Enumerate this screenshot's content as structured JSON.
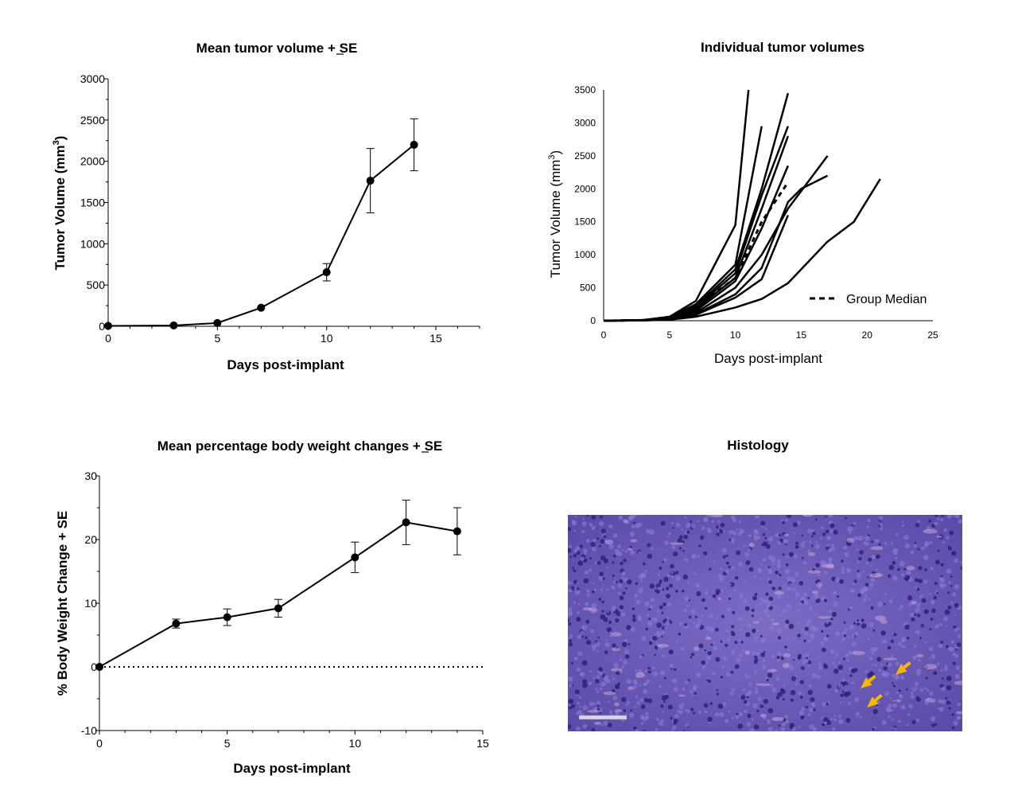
{
  "chart_data": [
    {
      "type": "line",
      "title": "Mean tumor volume + SE",
      "xlabel": "Days post-implant",
      "ylabel": "Tumor Volume (mm",
      "ylabel_sup": "3",
      "ylabel_close": ")",
      "xlim": [
        0,
        17
      ],
      "ylim": [
        0,
        3000
      ],
      "xticks": [
        0,
        5,
        10,
        15
      ],
      "yticks": [
        0,
        500,
        1000,
        1500,
        2000,
        2500,
        3000
      ],
      "points": [
        {
          "x": 0,
          "y": 5,
          "err": 0
        },
        {
          "x": 3,
          "y": 10,
          "err": 0
        },
        {
          "x": 5,
          "y": 40,
          "err": 0
        },
        {
          "x": 7,
          "y": 225,
          "err": 0
        },
        {
          "x": 10,
          "y": 655,
          "err": 105
        },
        {
          "x": 12,
          "y": 1765,
          "err": 390
        },
        {
          "x": 14,
          "y": 2200,
          "err": 315
        }
      ]
    },
    {
      "type": "line",
      "title": "Individual tumor volumes",
      "xlabel": "Days post-implant",
      "ylabel": "Tumor Volume (mm",
      "ylabel_sup": "3",
      "ylabel_close": ")",
      "xlim": [
        0,
        25
      ],
      "ylim": [
        0,
        3500
      ],
      "xticks": [
        0,
        5,
        10,
        15,
        20,
        25
      ],
      "yticks": [
        0,
        500,
        1000,
        1500,
        2000,
        2500,
        3000,
        3500
      ],
      "legend": "Group Median",
      "series": [
        {
          "points": [
            [
              0,
              0
            ],
            [
              3,
              10
            ],
            [
              5,
              60
            ],
            [
              7,
              300
            ],
            [
              10,
              1450
            ],
            [
              11,
              3500
            ]
          ]
        },
        {
          "points": [
            [
              0,
              0
            ],
            [
              3,
              10
            ],
            [
              5,
              50
            ],
            [
              7,
              250
            ],
            [
              10,
              850
            ],
            [
              12,
              2950
            ]
          ]
        },
        {
          "points": [
            [
              0,
              0
            ],
            [
              3,
              10
            ],
            [
              5,
              40
            ],
            [
              7,
              220
            ],
            [
              10,
              780
            ],
            [
              12,
              2000
            ],
            [
              14,
              3450
            ]
          ]
        },
        {
          "points": [
            [
              0,
              0
            ],
            [
              3,
              10
            ],
            [
              5,
              40
            ],
            [
              7,
              200
            ],
            [
              10,
              720
            ],
            [
              12,
              1900
            ],
            [
              14,
              2950
            ]
          ]
        },
        {
          "points": [
            [
              0,
              0
            ],
            [
              3,
              8
            ],
            [
              5,
              30
            ],
            [
              7,
              180
            ],
            [
              10,
              650
            ],
            [
              12,
              1700
            ],
            [
              14,
              2800
            ]
          ]
        },
        {
          "points": [
            [
              0,
              0
            ],
            [
              3,
              8
            ],
            [
              5,
              30
            ],
            [
              7,
              150
            ],
            [
              10,
              600
            ],
            [
              12,
              1400
            ],
            [
              14,
              2350
            ]
          ]
        },
        {
          "points": [
            [
              0,
              0
            ],
            [
              3,
              6
            ],
            [
              5,
              25
            ],
            [
              7,
              120
            ],
            [
              10,
              500
            ],
            [
              12,
              1000
            ],
            [
              14,
              1700
            ],
            [
              17,
              2500
            ]
          ]
        },
        {
          "points": [
            [
              0,
              0
            ],
            [
              3,
              5
            ],
            [
              5,
              20
            ],
            [
              7,
              100
            ],
            [
              10,
              400
            ],
            [
              12,
              800
            ],
            [
              14,
              1800
            ],
            [
              15,
              2000
            ],
            [
              17,
              2200
            ]
          ]
        },
        {
          "points": [
            [
              0,
              0
            ],
            [
              3,
              5
            ],
            [
              5,
              20
            ],
            [
              7,
              90
            ],
            [
              10,
              350
            ],
            [
              12,
              630
            ],
            [
              14,
              1600
            ]
          ]
        },
        {
          "points": [
            [
              0,
              0
            ],
            [
              3,
              4
            ],
            [
              5,
              15
            ],
            [
              7,
              60
            ],
            [
              10,
              200
            ],
            [
              12,
              330
            ],
            [
              14,
              570
            ],
            [
              17,
              1200
            ],
            [
              19,
              1500
            ],
            [
              21,
              2150
            ]
          ]
        }
      ],
      "median": [
        [
          0,
          0
        ],
        [
          3,
          8
        ],
        [
          5,
          35
        ],
        [
          7,
          200
        ],
        [
          10,
          650
        ],
        [
          12,
          1500
        ],
        [
          14,
          2100
        ]
      ]
    },
    {
      "type": "line",
      "title": "Mean percentage body weight changes + SE",
      "xlabel": "Days post-implant",
      "ylabel": "% Body  Weight Change + SE",
      "xlim": [
        0,
        15
      ],
      "ylim": [
        -10,
        30
      ],
      "xticks": [
        0,
        5,
        10,
        15
      ],
      "yticks": [
        -10,
        0,
        10,
        20,
        30
      ],
      "reference_line": 0,
      "points": [
        {
          "x": 0,
          "y": 0,
          "err": 0
        },
        {
          "x": 3,
          "y": 6.8,
          "err": 0.7
        },
        {
          "x": 5,
          "y": 7.8,
          "err": 1.3
        },
        {
          "x": 7,
          "y": 9.2,
          "err": 1.4
        },
        {
          "x": 10,
          "y": 17.2,
          "err": 2.4
        },
        {
          "x": 12,
          "y": 22.7,
          "err": 3.5
        },
        {
          "x": 14,
          "y": 21.3,
          "err": 3.7
        }
      ]
    }
  ],
  "histology": {
    "title": "Histology",
    "colors": {
      "tissue": "#6a5bb8",
      "nuclei": "#2a2478",
      "stroma": "#c9a3d8",
      "arrow": "#f5b700"
    }
  }
}
